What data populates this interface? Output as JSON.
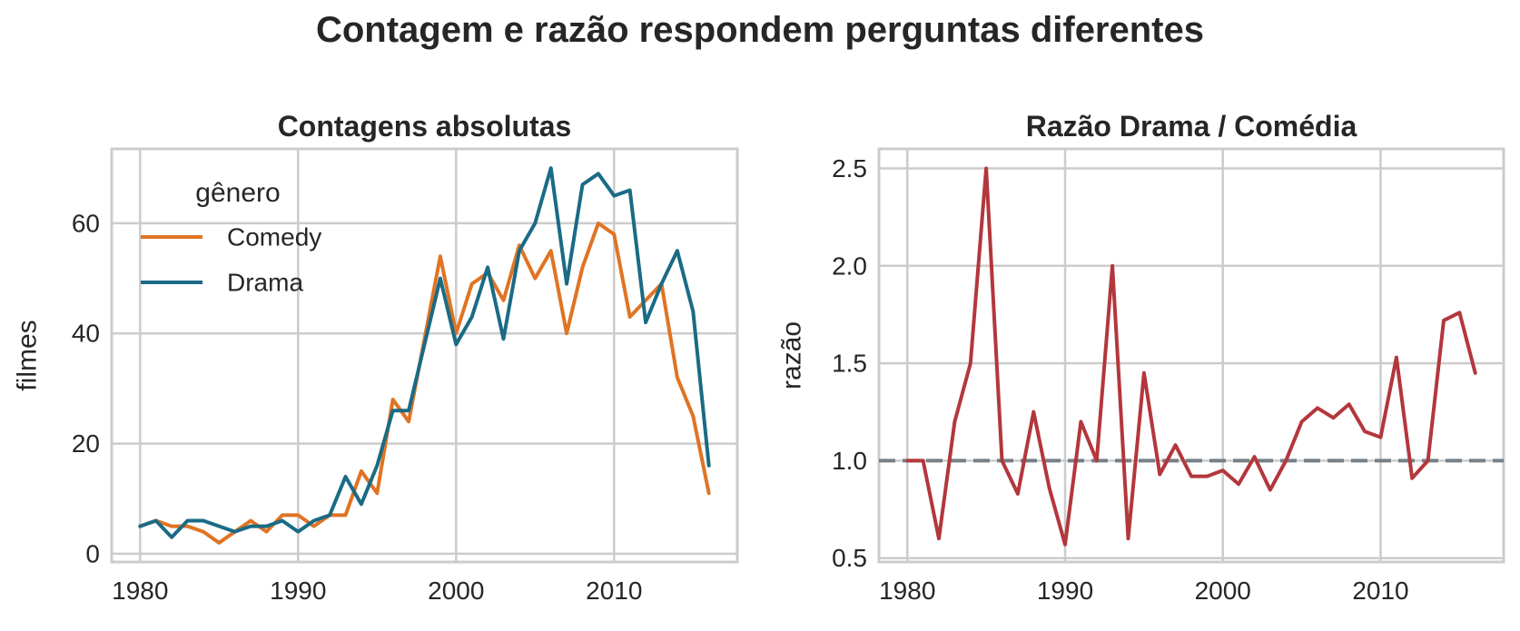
{
  "suptitle": "Contagem e razão respondem perguntas diferentes",
  "colors": {
    "comedy": "#df7424",
    "drama": "#1a6b85",
    "ratio": "#b3373c",
    "reference": "#767f88"
  },
  "chart_data": [
    {
      "type": "line",
      "title": "Contagens absolutas",
      "xlabel": "",
      "ylabel": "filmes",
      "xlim": [
        1978.2,
        2017.8
      ],
      "ylim": [
        -1.5,
        73.5
      ],
      "xticks": [
        1980,
        1990,
        2000,
        2010
      ],
      "yticks": [
        0,
        20,
        40,
        60
      ],
      "grid": true,
      "legend": {
        "title": "gênero",
        "position": "top-left",
        "entries": [
          "Comedy",
          "Drama"
        ]
      },
      "x": [
        1980,
        1981,
        1982,
        1983,
        1984,
        1985,
        1986,
        1987,
        1988,
        1989,
        1990,
        1991,
        1992,
        1993,
        1994,
        1995,
        1996,
        1997,
        1998,
        1999,
        2000,
        2001,
        2002,
        2003,
        2004,
        2005,
        2006,
        2007,
        2008,
        2009,
        2010,
        2011,
        2012,
        2013,
        2014,
        2015,
        2016
      ],
      "series": [
        {
          "name": "Comedy",
          "color": "#df7424",
          "values": [
            5,
            6,
            5,
            5,
            4,
            2,
            4,
            6,
            4,
            7,
            7,
            5,
            7,
            7,
            15,
            11,
            28,
            24,
            39,
            54,
            40,
            49,
            51,
            46,
            56,
            50,
            55,
            40,
            52,
            60,
            58,
            43,
            46,
            49,
            32,
            25,
            11
          ]
        },
        {
          "name": "Drama",
          "color": "#1a6b85",
          "values": [
            5,
            6,
            3,
            6,
            6,
            5,
            4,
            5,
            5,
            6,
            4,
            6,
            7,
            14,
            9,
            16,
            26,
            26,
            38,
            50,
            38,
            43,
            52,
            39,
            55,
            60,
            70,
            49,
            67,
            69,
            65,
            66,
            42,
            49,
            55,
            44,
            16
          ]
        }
      ]
    },
    {
      "type": "line",
      "title": "Razão Drama / Comédia",
      "xlabel": "",
      "ylabel": "razão",
      "xlim": [
        1978.2,
        2017.8
      ],
      "ylim": [
        0.48,
        2.6
      ],
      "xticks": [
        1980,
        1990,
        2000,
        2010
      ],
      "yticks": [
        0.5,
        1.0,
        1.5,
        2.0,
        2.5
      ],
      "ytick_labels": [
        "0.5",
        "1.0",
        "1.5",
        "2.0",
        "2.5"
      ],
      "grid": true,
      "reference_line": {
        "y": 1.0,
        "style": "dashed",
        "color": "#767f88"
      },
      "x": [
        1980,
        1981,
        1982,
        1983,
        1984,
        1985,
        1986,
        1987,
        1988,
        1989,
        1990,
        1991,
        1992,
        1993,
        1994,
        1995,
        1996,
        1997,
        1998,
        1999,
        2000,
        2001,
        2002,
        2003,
        2004,
        2005,
        2006,
        2007,
        2008,
        2009,
        2010,
        2011,
        2012,
        2013,
        2014,
        2015,
        2016
      ],
      "series": [
        {
          "name": "",
          "color": "#b3373c",
          "values": [
            1.0,
            1.0,
            0.6,
            1.2,
            1.5,
            2.5,
            1.0,
            0.83,
            1.25,
            0.86,
            0.57,
            1.2,
            1.0,
            2.0,
            0.6,
            1.45,
            0.93,
            1.08,
            0.92,
            0.92,
            0.95,
            0.88,
            1.02,
            0.85,
            1.0,
            1.2,
            1.27,
            1.22,
            1.29,
            1.15,
            1.12,
            1.53,
            0.91,
            1.0,
            1.72,
            1.76,
            1.45
          ]
        }
      ]
    }
  ]
}
